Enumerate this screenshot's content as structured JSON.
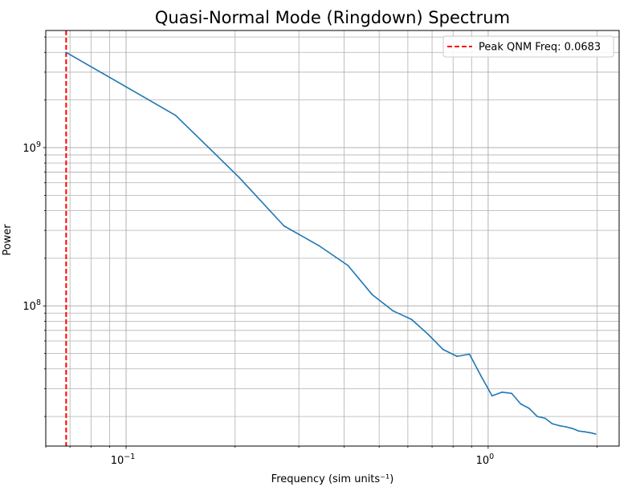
{
  "chart_data": {
    "type": "line",
    "title": "Quasi-Normal Mode (Ringdown) Spectrum",
    "xlabel": "Frequency (sim units⁻¹)",
    "ylabel": "Power",
    "xscale": "log",
    "yscale": "log",
    "xlim": [
      0.06,
      2.3
    ],
    "ylim": [
      13000000,
      5500000000
    ],
    "grid": "on (major and minor)",
    "legend_placement": "top-right",
    "x_ticks": [
      {
        "value": 0.1,
        "base": "10",
        "exp": "−1"
      },
      {
        "value": 1,
        "base": "10",
        "exp": "0"
      }
    ],
    "y_ticks": [
      {
        "value": 100000000,
        "base": "10",
        "exp": "8"
      },
      {
        "value": 1000000000,
        "base": "10",
        "exp": "9"
      }
    ],
    "series": [
      {
        "color": "#1f77b4",
        "x": [
          0.0683,
          0.137,
          0.205,
          0.273,
          0.341,
          0.41,
          0.478,
          0.546,
          0.615,
          0.683,
          0.751,
          0.82,
          0.888,
          0.956,
          1.025,
          1.093,
          1.161,
          1.23,
          1.298,
          1.366,
          1.435,
          1.503,
          1.571,
          1.64,
          1.708,
          1.776,
          1.845,
          1.913,
          1.98
        ],
        "y": [
          4000000000,
          1600000000,
          650000000,
          320000000,
          240000000,
          180000000,
          118000000,
          93000000,
          82000000,
          66000000,
          53000000,
          48000000,
          49500000,
          36000000,
          27000000,
          28500000,
          28000000,
          24000000,
          22500000,
          20000000,
          19500000,
          18000000,
          17500000,
          17200000,
          16800000,
          16200000,
          16000000,
          15800000,
          15500000
        ]
      }
    ],
    "reference_line": {
      "x": 0.0683,
      "color": "#ff0000",
      "style": "dashed",
      "legend_label": "Peak QNM Freq: 0.0683"
    }
  }
}
